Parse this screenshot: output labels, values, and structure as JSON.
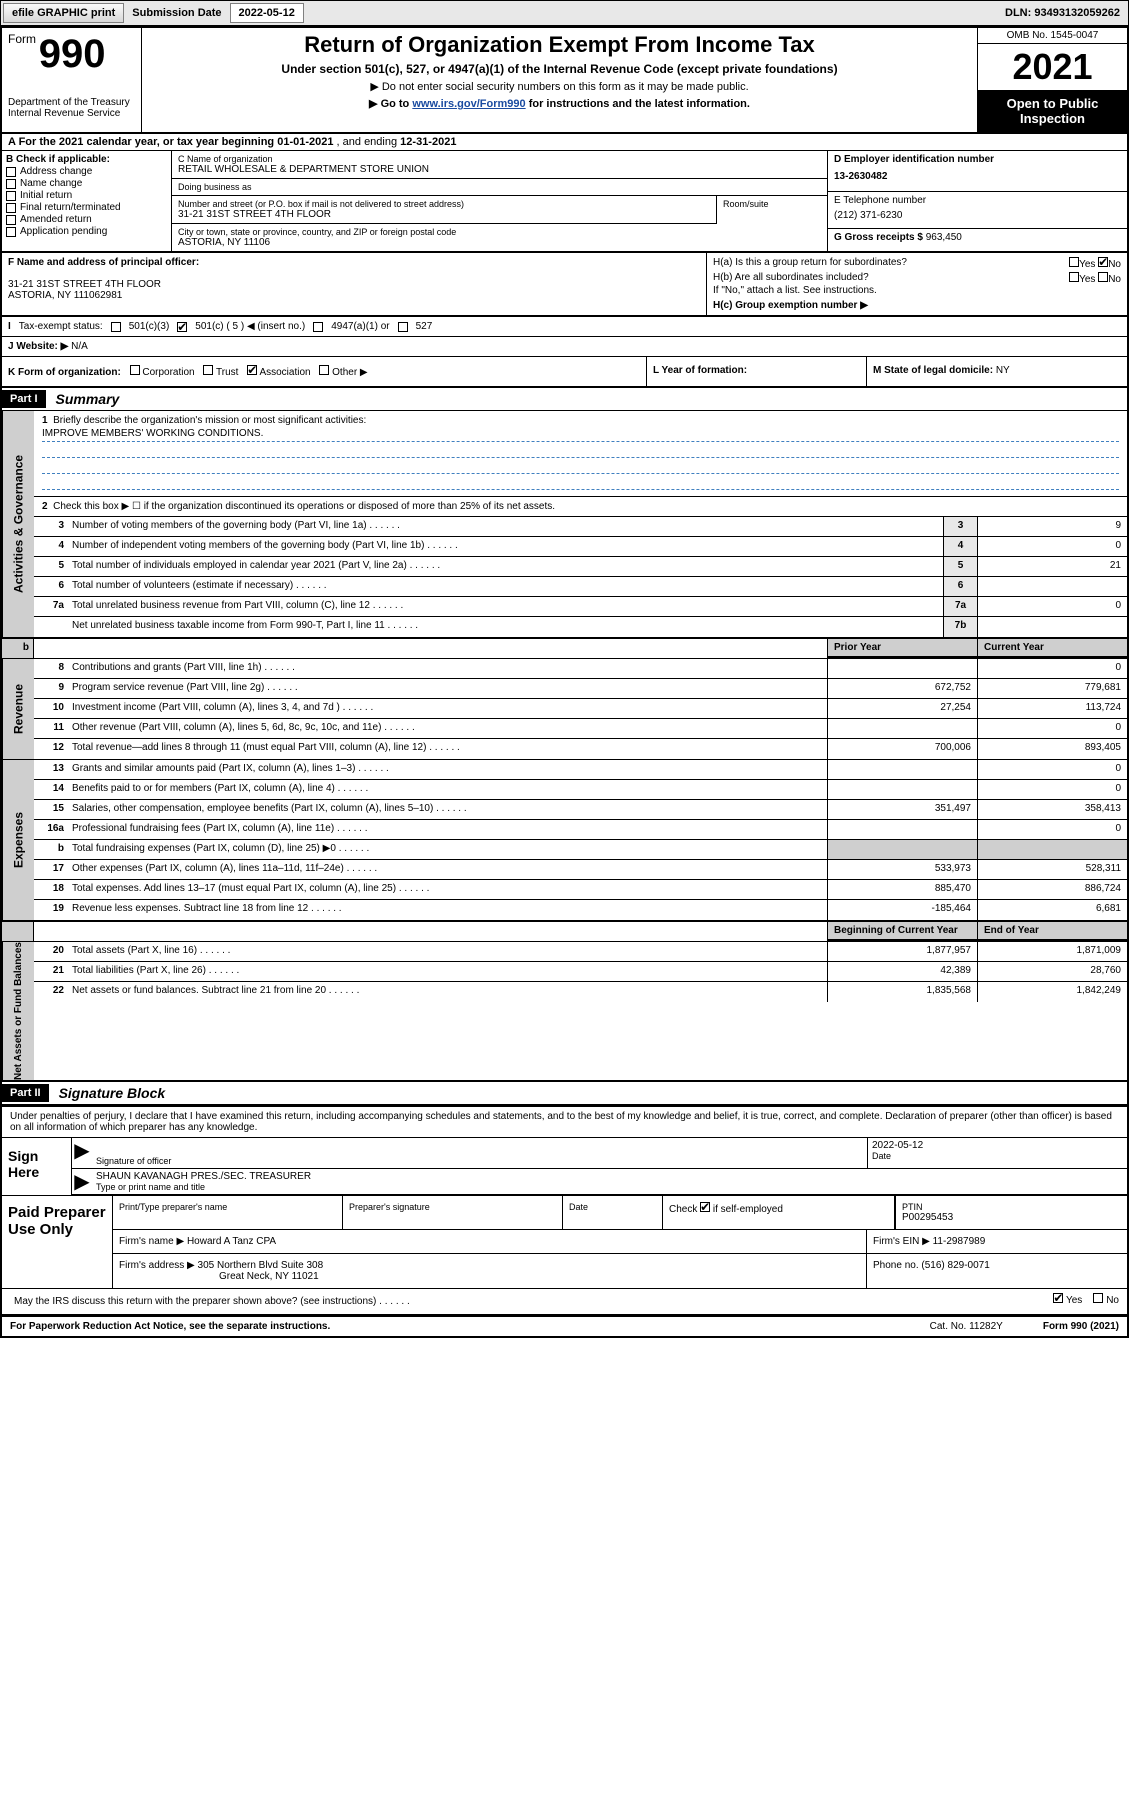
{
  "topbar": {
    "efile_btn": "efile GRAPHIC print",
    "sub_label": "Submission Date",
    "sub_date": "2022-05-12",
    "dln_label": "DLN:",
    "dln": "93493132059262"
  },
  "header": {
    "form_word": "Form",
    "form_no": "990",
    "dept": "Department of the Treasury",
    "irs": "Internal Revenue Service",
    "title": "Return of Organization Exempt From Income Tax",
    "sub1": "Under section 501(c), 527, or 4947(a)(1) of the Internal Revenue Code (except private foundations)",
    "sub2_prefix": "▶ Do not enter social security numbers on this form as it may be made public.",
    "sub3_prefix": "▶ Go to ",
    "sub3_link": "www.irs.gov/Form990",
    "sub3_suffix": " for instructions and the latest information.",
    "omb": "OMB No. 1545-0047",
    "year": "2021",
    "opi": "Open to Public Inspection"
  },
  "rowA": {
    "text_a": "A For the 2021 calendar year, or tax year beginning ",
    "begin": "01-01-2021",
    "mid": " , and ending ",
    "end": "12-31-2021"
  },
  "colB": {
    "label": "B Check if applicable:",
    "addr_change": "Address change",
    "name_change": "Name change",
    "initial": "Initial return",
    "final": "Final return/terminated",
    "amended": "Amended return",
    "app_pending": "Application pending"
  },
  "colC": {
    "name_label": "C Name of organization",
    "name": "RETAIL WHOLESALE & DEPARTMENT STORE UNION",
    "dba_label": "Doing business as",
    "dba": "",
    "street_label": "Number and street (or P.O. box if mail is not delivered to street address)",
    "street": "31-21 31ST STREET 4TH FLOOR",
    "room_label": "Room/suite",
    "room": "",
    "city_label": "City or town, state or province, country, and ZIP or foreign postal code",
    "city": "ASTORIA, NY  11106"
  },
  "colDE": {
    "d_label": "D Employer identification number",
    "ein": "13-2630482",
    "e_label": "E Telephone number",
    "phone": "(212) 371-6230",
    "g_label": "G Gross receipts $",
    "gross": "963,450"
  },
  "rowF": {
    "f_label": "F Name and address of principal officer:",
    "f_addr1": "31-21 31ST STREET 4TH FLOOR",
    "f_addr2": "ASTORIA, NY  111062981",
    "ha_label": "H(a)  Is this a group return for subordinates?",
    "hb_label": "H(b)  Are all subordinates included?",
    "hb_note": "If \"No,\" attach a list. See instructions.",
    "hc_label": "H(c)  Group exemption number ▶",
    "yes": "Yes",
    "no": "No"
  },
  "rowI": {
    "label": "Tax-exempt status:",
    "o1": "501(c)(3)",
    "o2": "501(c) ( 5 ) ◀ (insert no.)",
    "o3": "4947(a)(1) or",
    "o4": "527"
  },
  "rowJ": {
    "label": "J   Website: ▶",
    "val": "N/A"
  },
  "rowK": {
    "k_label": "K Form of organization:",
    "corp": "Corporation",
    "trust": "Trust",
    "assoc": "Association",
    "other": "Other ▶",
    "l_label": "L Year of formation:",
    "l_val": "",
    "m_label": "M State of legal domicile:",
    "m_val": "NY"
  },
  "partI": {
    "hdr": "Part I",
    "title": "Summary",
    "q1": "Briefly describe the organization's mission or most significant activities:",
    "mission": "IMPROVE MEMBERS' WORKING CONDITIONS.",
    "q2": "Check this box ▶ ☐  if the organization discontinued its operations or disposed of more than 25% of its net assets.",
    "vtab_ag": "Activities & Governance",
    "vtab_rev": "Revenue",
    "vtab_exp": "Expenses",
    "vtab_na": "Net Assets or Fund Balances",
    "prior_hdr": "Prior Year",
    "curr_hdr": "Current Year",
    "bcy_hdr": "Beginning of Current Year",
    "eoy_hdr": "End of Year",
    "lines_gov": [
      {
        "n": "3",
        "d": "Number of voting members of the governing body (Part VI, line 1a)",
        "box": "3",
        "v": "9"
      },
      {
        "n": "4",
        "d": "Number of independent voting members of the governing body (Part VI, line 1b)",
        "box": "4",
        "v": "0"
      },
      {
        "n": "5",
        "d": "Total number of individuals employed in calendar year 2021 (Part V, line 2a)",
        "box": "5",
        "v": "21"
      },
      {
        "n": "6",
        "d": "Total number of volunteers (estimate if necessary)",
        "box": "6",
        "v": ""
      },
      {
        "n": "7a",
        "d": "Total unrelated business revenue from Part VIII, column (C), line 12",
        "box": "7a",
        "v": "0"
      },
      {
        "n": "",
        "d": "Net unrelated business taxable income from Form 990-T, Part I, line 11",
        "box": "7b",
        "v": ""
      }
    ],
    "lines_rev": [
      {
        "n": "8",
        "d": "Contributions and grants (Part VIII, line 1h)",
        "p": "",
        "c": "0"
      },
      {
        "n": "9",
        "d": "Program service revenue (Part VIII, line 2g)",
        "p": "672,752",
        "c": "779,681"
      },
      {
        "n": "10",
        "d": "Investment income (Part VIII, column (A), lines 3, 4, and 7d )",
        "p": "27,254",
        "c": "113,724"
      },
      {
        "n": "11",
        "d": "Other revenue (Part VIII, column (A), lines 5, 6d, 8c, 9c, 10c, and 11e)",
        "p": "",
        "c": "0"
      },
      {
        "n": "12",
        "d": "Total revenue—add lines 8 through 11 (must equal Part VIII, column (A), line 12)",
        "p": "700,006",
        "c": "893,405"
      }
    ],
    "lines_exp": [
      {
        "n": "13",
        "d": "Grants and similar amounts paid (Part IX, column (A), lines 1–3)",
        "p": "",
        "c": "0"
      },
      {
        "n": "14",
        "d": "Benefits paid to or for members (Part IX, column (A), line 4)",
        "p": "",
        "c": "0"
      },
      {
        "n": "15",
        "d": "Salaries, other compensation, employee benefits (Part IX, column (A), lines 5–10)",
        "p": "351,497",
        "c": "358,413"
      },
      {
        "n": "16a",
        "d": "Professional fundraising fees (Part IX, column (A), line 11e)",
        "p": "",
        "c": "0"
      },
      {
        "n": "b",
        "d": "Total fundraising expenses (Part IX, column (D), line 25) ▶0",
        "p": "",
        "c": "",
        "shade": true
      },
      {
        "n": "17",
        "d": "Other expenses (Part IX, column (A), lines 11a–11d, 11f–24e)",
        "p": "533,973",
        "c": "528,311"
      },
      {
        "n": "18",
        "d": "Total expenses. Add lines 13–17 (must equal Part IX, column (A), line 25)",
        "p": "885,470",
        "c": "886,724"
      },
      {
        "n": "19",
        "d": "Revenue less expenses. Subtract line 18 from line 12",
        "p": "-185,464",
        "c": "6,681"
      }
    ],
    "lines_na": [
      {
        "n": "20",
        "d": "Total assets (Part X, line 16)",
        "p": "1,877,957",
        "c": "1,871,009"
      },
      {
        "n": "21",
        "d": "Total liabilities (Part X, line 26)",
        "p": "42,389",
        "c": "28,760"
      },
      {
        "n": "22",
        "d": "Net assets or fund balances. Subtract line 21 from line 20",
        "p": "1,835,568",
        "c": "1,842,249"
      }
    ]
  },
  "partII": {
    "hdr": "Part II",
    "title": "Signature Block",
    "decl": "Under penalties of perjury, I declare that I have examined this return, including accompanying schedules and statements, and to the best of my knowledge and belief, it is true, correct, and complete. Declaration of preparer (other than officer) is based on all information of which preparer has any knowledge.",
    "sign_here": "Sign Here",
    "sig_officer_lbl": "Signature of officer",
    "sig_date_val": "2022-05-12",
    "sig_date_lbl": "Date",
    "sig_name": "SHAUN KAVANAGH PRES./SEC. TREASURER",
    "sig_name_lbl": "Type or print name and title",
    "paid": "Paid Preparer Use Only",
    "pp_name_lbl": "Print/Type preparer's name",
    "pp_sig_lbl": "Preparer's signature",
    "pp_date_lbl": "Date",
    "pp_check_lbl": "Check ☑ if self-employed",
    "pp_ptin_lbl": "PTIN",
    "pp_ptin": "P00295453",
    "firm_name_lbl": "Firm's name    ▶",
    "firm_name": "Howard A Tanz CPA",
    "firm_ein_lbl": "Firm's EIN ▶",
    "firm_ein": "11-2987989",
    "firm_addr_lbl": "Firm's address ▶",
    "firm_addr1": "305 Northern Blvd Suite 308",
    "firm_addr2": "Great Neck, NY  11021",
    "firm_phone_lbl": "Phone no.",
    "firm_phone": "(516) 829-0071",
    "discuss": "May the IRS discuss this return with the preparer shown above? (see instructions)",
    "yes": "Yes",
    "no": "No"
  },
  "footer": {
    "left": "For Paperwork Reduction Act Notice, see the separate instructions.",
    "mid": "Cat. No. 11282Y",
    "right": "Form 990 (2021)"
  },
  "colors": {
    "link": "#1a4ba0",
    "shade": "#cfcfcf",
    "boxshade": "#e8e8e8",
    "dashblue": "#4080c0"
  }
}
